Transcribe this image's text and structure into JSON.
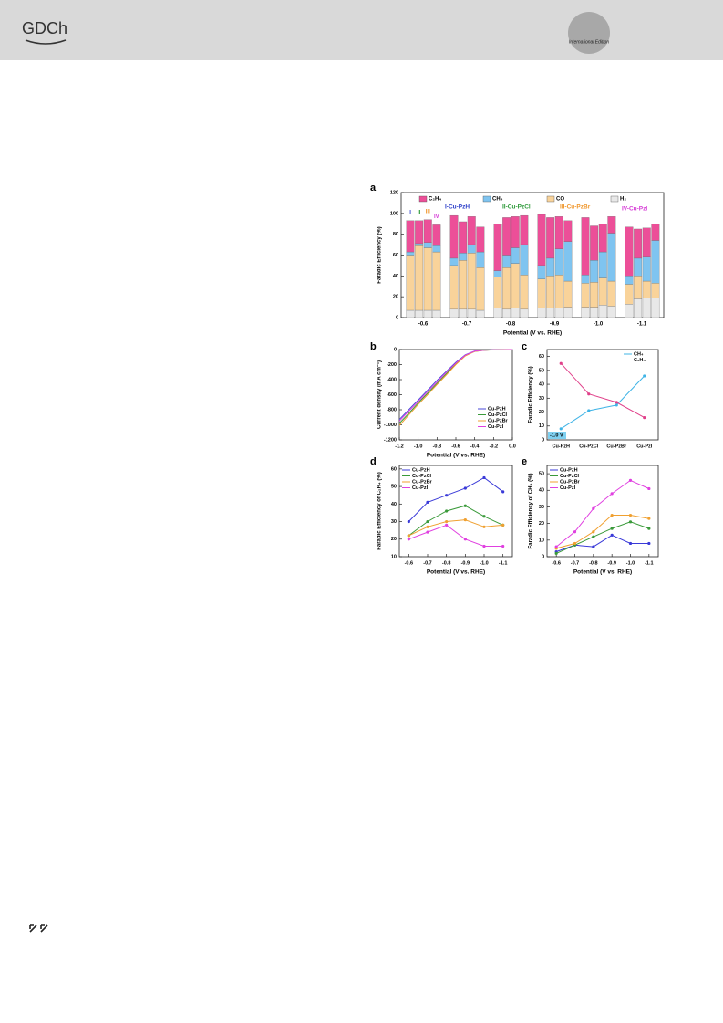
{
  "header": {
    "logo": "GDCh",
    "edition": "International Edition"
  },
  "chart_data": [
    {
      "type": "stacked-bar",
      "panel": "a",
      "ylabel": "Faradic Efficiency (%)",
      "xlabel": "Potential (V vs. RHE)",
      "categories": [
        "-0.6",
        "-0.7",
        "-0.8",
        "-0.9",
        "-1.0",
        "-1.1"
      ],
      "catalysts": [
        {
          "name": "I-Cu-PzH",
          "short": "I",
          "color": "#2a3cc8"
        },
        {
          "name": "II-Cu-PzCl",
          "short": "II",
          "color": "#2e9a3a"
        },
        {
          "name": "III-Cu-PzBr",
          "short": "III",
          "color": "#f0962a"
        },
        {
          "name": "IV-Cu-PzI",
          "short": "IV",
          "color": "#d63cd6"
        }
      ],
      "series": [
        {
          "name": "H₂",
          "color": "#e8e8e8",
          "values": [
            [
              7,
              7,
              7,
              7
            ],
            [
              8,
              8,
              8,
              7
            ],
            [
              9,
              8,
              9,
              8
            ],
            [
              9,
              9,
              9,
              10
            ],
            [
              10,
              10,
              12,
              11
            ],
            [
              13,
              18,
              19,
              19
            ]
          ]
        },
        {
          "name": "CO",
          "color": "#f9d39a",
          "values": [
            [
              53,
              62,
              60,
              56
            ],
            [
              42,
              47,
              54,
              41
            ],
            [
              30,
              40,
              43,
              33
            ],
            [
              28,
              31,
              32,
              25
            ],
            [
              23,
              24,
              26,
              24
            ],
            [
              19,
              22,
              16,
              14
            ]
          ]
        },
        {
          "name": "CH₄",
          "color": "#7fc4f0",
          "values": [
            [
              3,
              2,
              5,
              6
            ],
            [
              7,
              7,
              8,
              15
            ],
            [
              6,
              12,
              15,
              29
            ],
            [
              13,
              17,
              25,
              38
            ],
            [
              8,
              21,
              25,
              46
            ],
            [
              8,
              17,
              23,
              41
            ]
          ]
        },
        {
          "name": "C₂H₄",
          "color": "#ec4f98",
          "values": [
            [
              30,
              22,
              22,
              20
            ],
            [
              41,
              30,
              27,
              24
            ],
            [
              45,
              36,
              30,
              28
            ],
            [
              49,
              39,
              31,
              20
            ],
            [
              55,
              33,
              27,
              16
            ],
            [
              47,
              28,
              28,
              16
            ]
          ]
        }
      ],
      "ylim": [
        0,
        120
      ],
      "yticks": [
        0,
        20,
        40,
        60,
        80,
        100,
        120
      ]
    },
    {
      "type": "line",
      "panel": "b",
      "ylabel": "Current density (mA cm⁻²)",
      "xlabel": "Potential (V vs. RHE)",
      "legend": "lower right",
      "markers": false,
      "x": [
        -1.2,
        -1.1,
        -1.0,
        -0.9,
        -0.8,
        -0.7,
        -0.6,
        -0.5,
        -0.4,
        -0.3,
        -0.2,
        -0.1,
        0.0
      ],
      "series": [
        {
          "name": "Cu-PzH",
          "color": "#4a4ad8",
          "values": [
            -930,
            -800,
            -670,
            -540,
            -410,
            -290,
            -170,
            -70,
            -20,
            -8,
            -4,
            -2,
            0
          ]
        },
        {
          "name": "Cu-PzCl",
          "color": "#3a9a3a",
          "values": [
            -980,
            -850,
            -710,
            -580,
            -450,
            -320,
            -190,
            -80,
            -25,
            -10,
            -5,
            -2,
            0
          ]
        },
        {
          "name": "Cu-PzBr",
          "color": "#f0a030",
          "values": [
            -1010,
            -870,
            -730,
            -600,
            -465,
            -335,
            -200,
            -85,
            -25,
            -10,
            -5,
            -2,
            0
          ]
        },
        {
          "name": "Cu-PzI",
          "color": "#e040e0",
          "values": [
            -950,
            -820,
            -690,
            -560,
            -430,
            -300,
            -180,
            -75,
            -22,
            -9,
            -4,
            -2,
            0
          ]
        }
      ],
      "xlim": [
        -1.2,
        0.0
      ],
      "xticks": [
        -1.2,
        {
          "value": -1.0,
          "label": "-1.0"
        },
        -0.8,
        -0.6,
        -0.4,
        -0.2,
        {
          "value": 0.0,
          "label": "0.0"
        }
      ],
      "ylim": [
        -1200,
        0
      ],
      "yticks": [
        -1200,
        -1000,
        -800,
        -600,
        -400,
        -200,
        0
      ]
    },
    {
      "type": "line",
      "panel": "c",
      "ylabel": "Faradic Efficiency (%)",
      "legend": "upper right",
      "markers": true,
      "annotation": "-1.0 V",
      "categories": [
        "Cu-PzH",
        "Cu-PzCl",
        "Cu-PzBr",
        "Cu-PzI"
      ],
      "series": [
        {
          "name": "CH₄",
          "color": "#40b4e6",
          "values": [
            8,
            21,
            25,
            46
          ]
        },
        {
          "name": "C₂H₄",
          "color": "#e0408a",
          "values": [
            55,
            33,
            27,
            16
          ]
        }
      ],
      "ylim": [
        0,
        65
      ],
      "yticks": [
        0,
        10,
        20,
        30,
        40,
        50,
        60
      ]
    },
    {
      "type": "line",
      "panel": "d",
      "ylabel": "Faradic Efficiency of C₂H₄ (%)",
      "xlabel": "Potential (V vs. RHE)",
      "legend": "upper left",
      "markers": true,
      "x": [
        -0.6,
        -0.7,
        -0.8,
        -0.9,
        -1.0,
        -1.1
      ],
      "series": [
        {
          "name": "Cu-PzH",
          "color": "#3a3ad8",
          "values": [
            30,
            41,
            45,
            49,
            55,
            47
          ]
        },
        {
          "name": "Cu-PzCl",
          "color": "#3a9a3a",
          "values": [
            22,
            30,
            36,
            39,
            33,
            28
          ]
        },
        {
          "name": "Cu-PzBr",
          "color": "#f0a030",
          "values": [
            22,
            27,
            30,
            31,
            27,
            28
          ]
        },
        {
          "name": "Cu-PzI",
          "color": "#e040e0",
          "values": [
            20,
            24,
            28,
            20,
            16,
            16
          ]
        }
      ],
      "xlim": [
        -0.55,
        -1.15
      ],
      "xticks": [
        -0.6,
        -0.7,
        -0.8,
        -0.9,
        {
          "value": -1.0,
          "label": "-1.0"
        },
        -1.1
      ],
      "ylim": [
        10,
        62
      ],
      "yticks": [
        10,
        20,
        30,
        40,
        50,
        60
      ]
    },
    {
      "type": "line",
      "panel": "e",
      "ylabel": "Faradic Efficiency of CH₄ (%)",
      "xlabel": "Potential (V vs. RHE)",
      "legend": "upper left",
      "markers": true,
      "x": [
        -0.6,
        -0.7,
        -0.8,
        -0.9,
        -1.0,
        -1.1
      ],
      "series": [
        {
          "name": "Cu-PzH",
          "color": "#3a3ad8",
          "values": [
            3,
            7,
            6,
            13,
            8,
            8
          ]
        },
        {
          "name": "Cu-PzCl",
          "color": "#3a9a3a",
          "values": [
            2,
            7,
            12,
            17,
            21,
            17
          ]
        },
        {
          "name": "Cu-PzBr",
          "color": "#f0a030",
          "values": [
            5,
            8,
            15,
            25,
            25,
            23
          ]
        },
        {
          "name": "Cu-PzI",
          "color": "#e040e0",
          "values": [
            6,
            15,
            29,
            38,
            46,
            41
          ]
        }
      ],
      "xlim": [
        -0.55,
        -1.15
      ],
      "xticks": [
        -0.6,
        -0.7,
        -0.8,
        -0.9,
        {
          "value": -1.0,
          "label": "-1.0"
        },
        -1.1
      ],
      "ylim": [
        0,
        55
      ],
      "yticks": [
        0,
        10,
        20,
        30,
        40,
        50
      ]
    }
  ]
}
